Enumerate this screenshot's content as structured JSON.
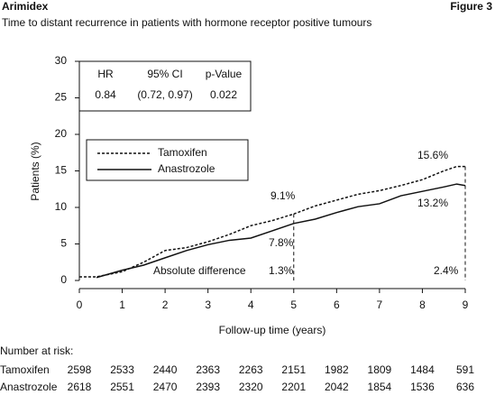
{
  "chart_data": {
    "type": "line",
    "header": "Arimidex",
    "figure": "Figure 3",
    "title": "Time to distant recurrence in patients with hormone receptor positive tumours",
    "x_label": "Follow-up time (years)",
    "y_label": "Patients (%)",
    "x": [
      0,
      0.4,
      1,
      1.5,
      2,
      2.5,
      3,
      3.5,
      4,
      4.5,
      5,
      5.5,
      6,
      6.5,
      7,
      7.5,
      8,
      8.5,
      8.8,
      9
    ],
    "series": [
      {
        "name": "Tamoxifen",
        "color": "#111111",
        "dash": true,
        "values": [
          0.5,
          0.5,
          1.2,
          2.5,
          4.1,
          4.5,
          5.3,
          6.3,
          7.5,
          8.2,
          9.1,
          10.2,
          11,
          11.8,
          12.3,
          13,
          13.8,
          15,
          15.6,
          15.6
        ]
      },
      {
        "name": "Anastrozole",
        "color": "#111111",
        "dash": false,
        "values": [
          null,
          0.4,
          1.4,
          2.1,
          3.1,
          4.1,
          4.9,
          5.5,
          5.8,
          6.8,
          7.8,
          8.4,
          9.3,
          10.1,
          10.5,
          11.6,
          12.2,
          12.8,
          13.2,
          13.0
        ]
      }
    ],
    "xlim": [
      0,
      9
    ],
    "xticks": [
      0,
      1,
      2,
      3,
      4,
      5,
      6,
      7,
      8,
      9
    ],
    "ylim": [
      0,
      30
    ],
    "yticks": [
      0,
      5,
      10,
      15,
      20,
      25,
      30
    ],
    "legend": "upper left",
    "stats": {
      "headers": [
        "HR",
        "95% CI",
        "p-Value"
      ],
      "row": [
        "0.84",
        "(0.72, 0.97)",
        "0.022"
      ]
    },
    "annotations": [
      "9.1%",
      "7.8%",
      "15.6%",
      "13.2%",
      "Absolute difference",
      "1.3%",
      "2.4%"
    ],
    "risk_table": {
      "title": "Number at risk:",
      "rows": [
        {
          "name": "Tamoxifen",
          "values": [
            2598,
            2533,
            2440,
            2363,
            2263,
            2151,
            1982,
            1809,
            1484,
            591
          ]
        },
        {
          "name": "Anastrozole",
          "values": [
            2618,
            2551,
            2470,
            2393,
            2320,
            2201,
            2042,
            1854,
            1536,
            636
          ]
        }
      ]
    }
  }
}
